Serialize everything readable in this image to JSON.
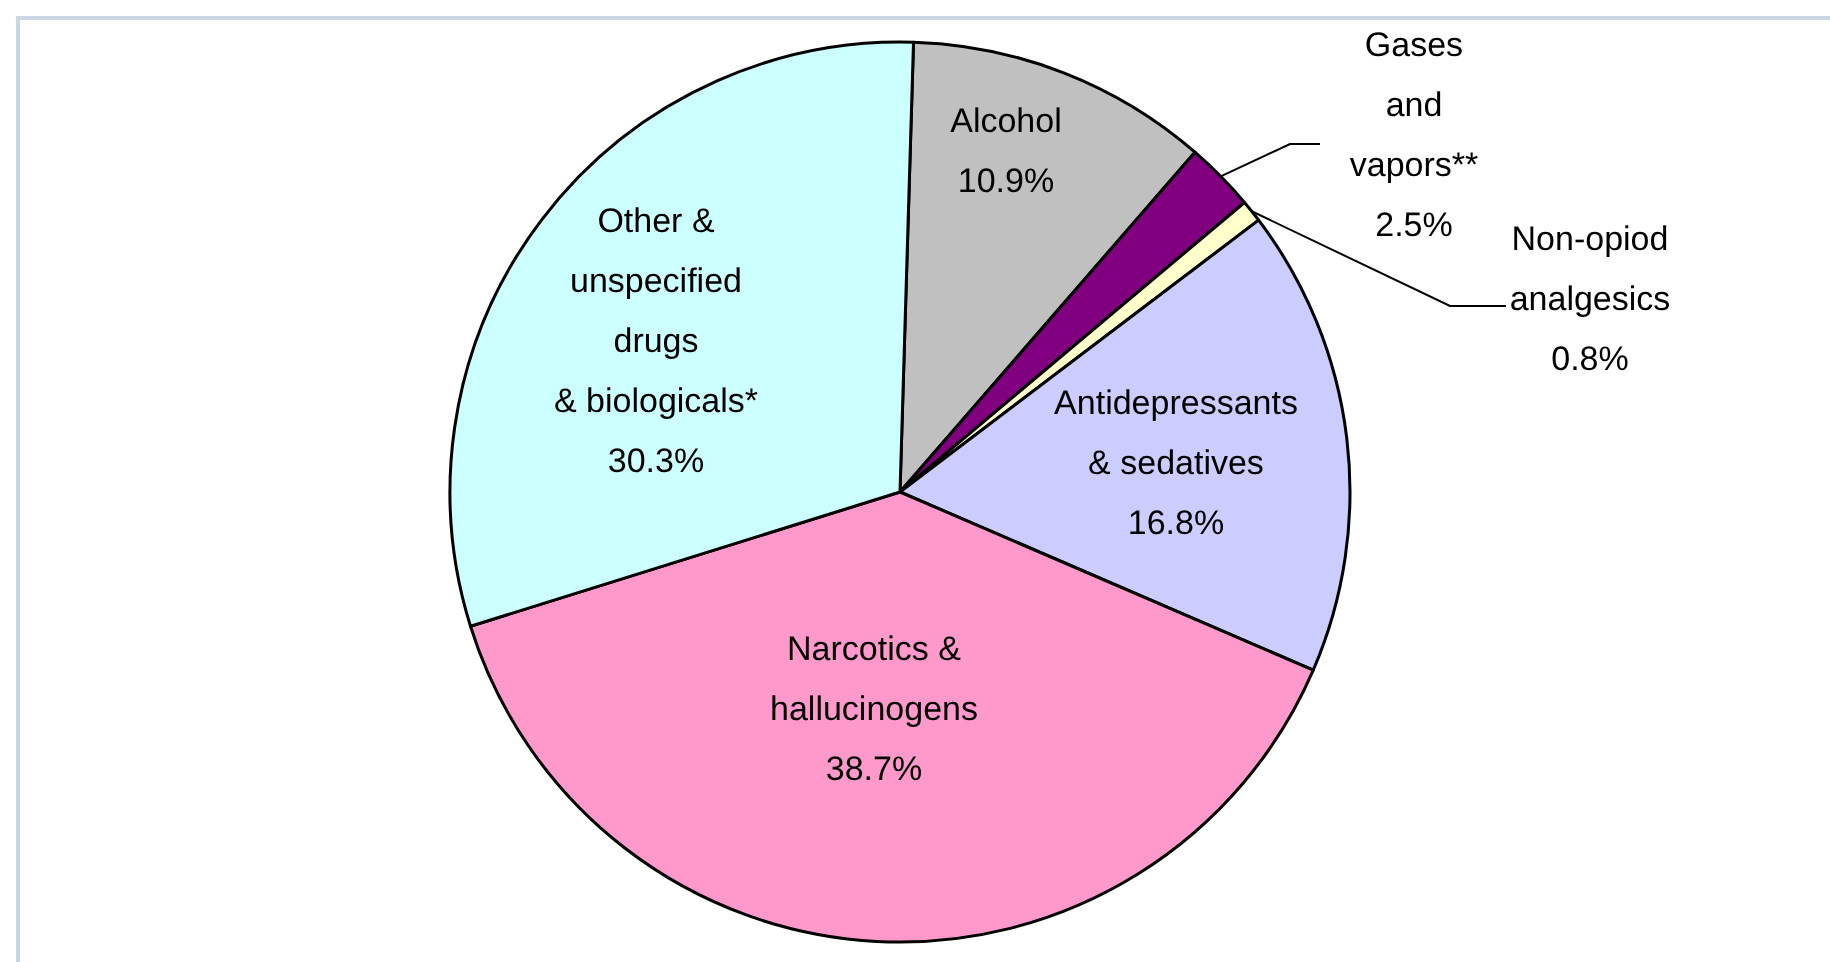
{
  "chart_data": {
    "type": "pie",
    "categories": [
      "Alcohol",
      "Gases and vapors**",
      "Non-opiod analgesics",
      "Antidepressants & sedatives",
      "Narcotics & hallucinogens",
      "Other & unspecified drugs & biologicals*"
    ],
    "values": [
      10.9,
      2.5,
      0.8,
      16.8,
      38.7,
      30.3
    ],
    "value_labels": [
      "10.9%",
      "2.5%",
      "0.8%",
      "16.8%",
      "38.7%",
      "30.3%"
    ],
    "colors": [
      "#c0c0c0",
      "#800080",
      "#ffffcc",
      "#ccccff",
      "#ff99cc",
      "#ccffff"
    ]
  }
}
